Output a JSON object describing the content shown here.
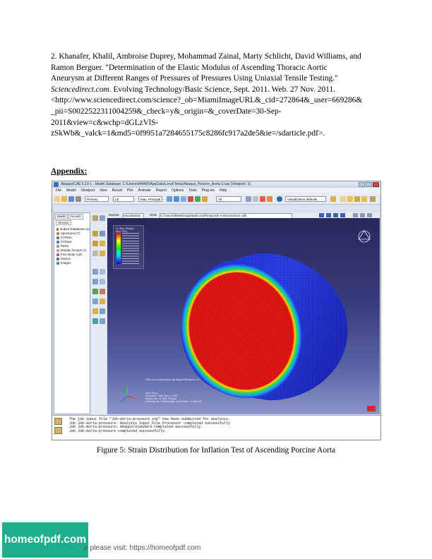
{
  "reference": {
    "lines": [
      "2. Khanafer, Khalil, Ambroise Duprey, Mohammad Zainal, Marty Schlicht, David Williams, and",
      "Ramon Berguer. \"Determination of the Elastic Modulus of Ascending Thoracic Aortic",
      "Aneurysm at Different Ranges of Pressures of Pressures Using Uniaxial Tensile Testing.\""
    ],
    "journal": "Sciencedirect.com",
    "journal_rest": ". Evolving Technology/Basic Science, Sept. 2011. Web. 27 Nov. 2011.",
    "url_lines": [
      "<http://www.sciencedirect.com/science?_ob=MiamiImageURL&_cid=272864&_user=669286&",
      "_pii=S0022522311004259&_check=y&_origin=&_coverDate=30-Sep-",
      "2011&view=c&wchp=dGLzVlS-",
      "zSkWb&_valck=1&md5=0f9951a7284655175c8286fc917a2de5&ie=/sdarticle.pdf>."
    ]
  },
  "appendix_heading": "Appendix:",
  "screenshot": {
    "window_title": "Abaqus/CAE 6.10-1 - Model Database: C:\\Users\\dlt4900\\AppData\\Local\\Temp\\Abaqus_Porcine_Aorta-3.cae [Viewport: 1]",
    "menus": [
      "File",
      "Model",
      "Viewport",
      "View",
      "Result",
      "Plot",
      "Animate",
      "Report",
      "Options",
      "Tools",
      "Plug-ins",
      "Help"
    ],
    "toolbar_selects": {
      "primary": "Primary",
      "variable": "LE",
      "invariant": "Max. Principal",
      "all": "All",
      "visualization": "Visualization defaults"
    },
    "tabs": {
      "model": "Model",
      "results": "Results"
    },
    "session_label": "Session",
    "tree_items": [
      "Output Databases (1)",
      "Spectrums (7)",
      "XYPlots",
      "XYData",
      "Paths",
      "Display Groups (1)",
      "Free Body Cuts",
      "Movies",
      "Images"
    ],
    "module_label": "Module:",
    "module_value": "Visualization",
    "odb_label": "ODB:",
    "odb_path": "C:/Users/dlt4900/AppData/Local/Temp/Job-Aorta-pressure.odb",
    "legend_title": "LE, Max. Principal",
    "legend_avg": "(Avg: 75%)",
    "viewport_odb_line": "ODB: Job-Aorta-pressure.odb     Abaqus/Standard 6.10-1",
    "viewport_step_lines": [
      "Step: Step-1",
      "Increment     1: Step Time = 1.000",
      "Primary Var: LE, Max. Principal",
      "Deformed Var: U  Deformation Scale Factor: +1.000e+00"
    ],
    "messages": [
      "The job input file \"Job-Aorta-pressure.inp\" has been submitted for analysis.",
      "Job Job-Aorta-pressure: Analysis Input File Processor completed successfully",
      "Job Job-Aorta-pressure: Abaqus/Standard completed successfully",
      "Job Job-Aorta-pressure completed successfully."
    ],
    "colors": {
      "viewport_top": "#27285a",
      "viewport_bottom": "#8d96c6",
      "inner_red": "#e3160f",
      "outer_blue": "#2b3fe0"
    }
  },
  "caption": "Figure 5: Strain Distribution for Inflation Test of Ascending Porcine Aorta",
  "watermark": {
    "badge": "homeofpdf.com",
    "footer_prefix": "e please visit: https://homeofpdf.com"
  }
}
